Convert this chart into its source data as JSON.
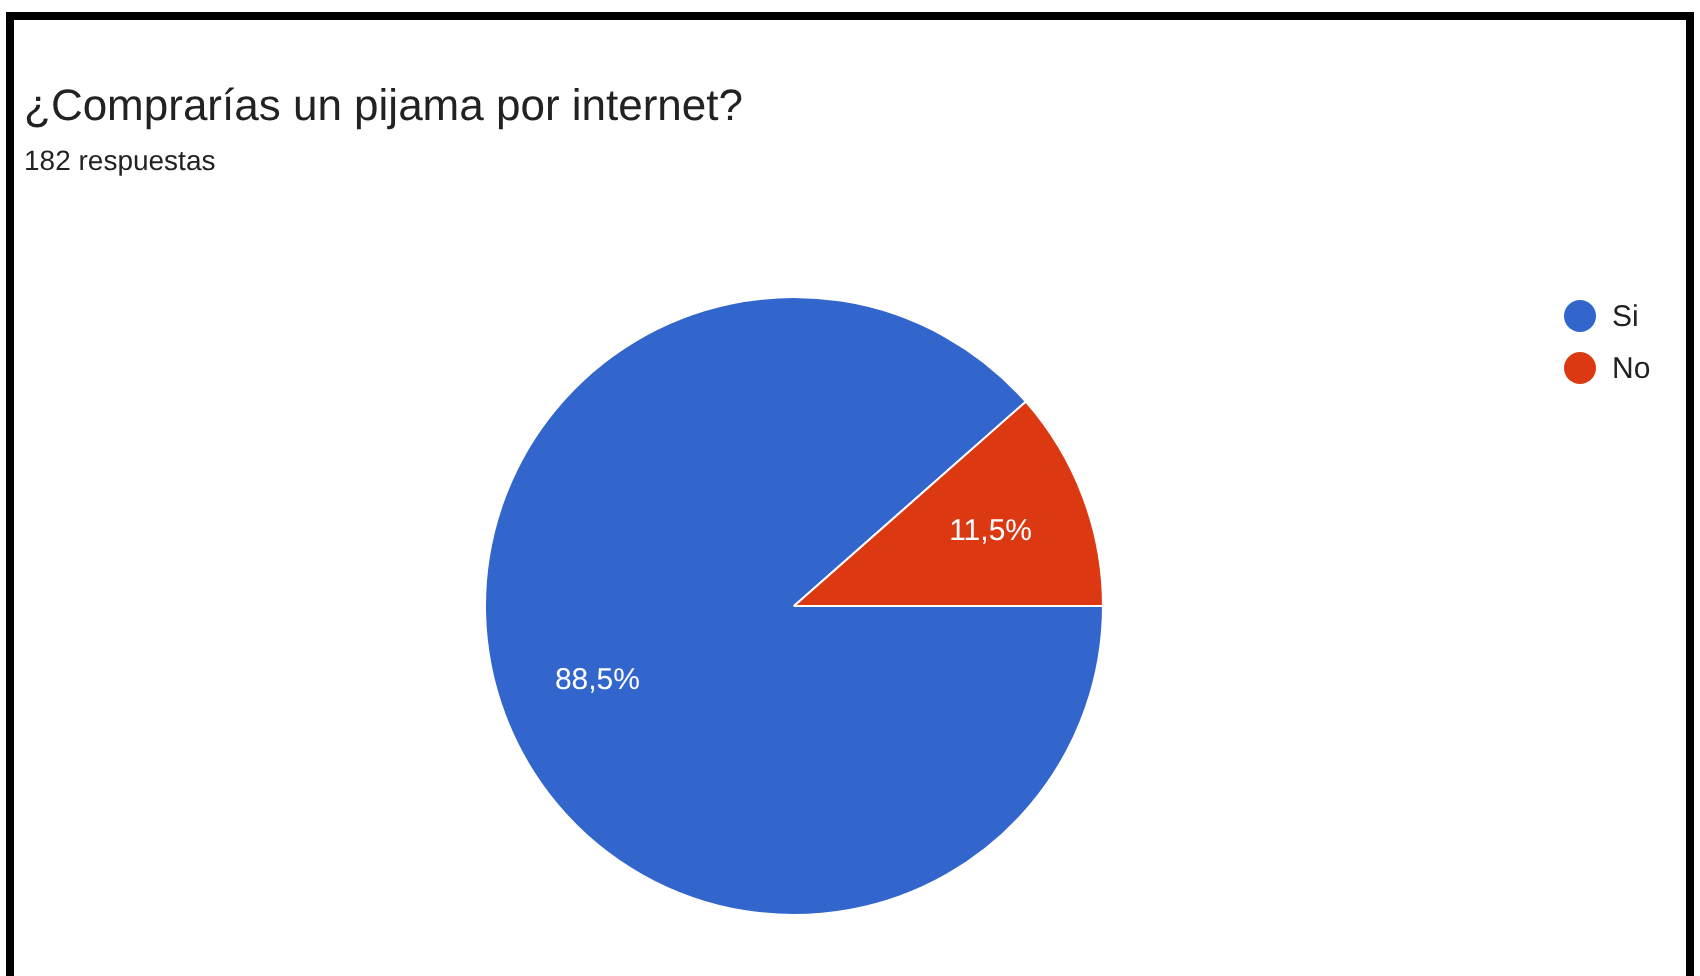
{
  "chart_data": {
    "type": "pie",
    "title": "¿Comprarías un pijama por internet?",
    "subtitle": "182 respuestas",
    "categories": [
      "Si",
      "No"
    ],
    "values": [
      88.5,
      11.5
    ],
    "colors": [
      "#3366cc",
      "#dc3912"
    ],
    "value_labels": [
      "88,5%",
      "11,5%"
    ],
    "legend": "top right"
  }
}
